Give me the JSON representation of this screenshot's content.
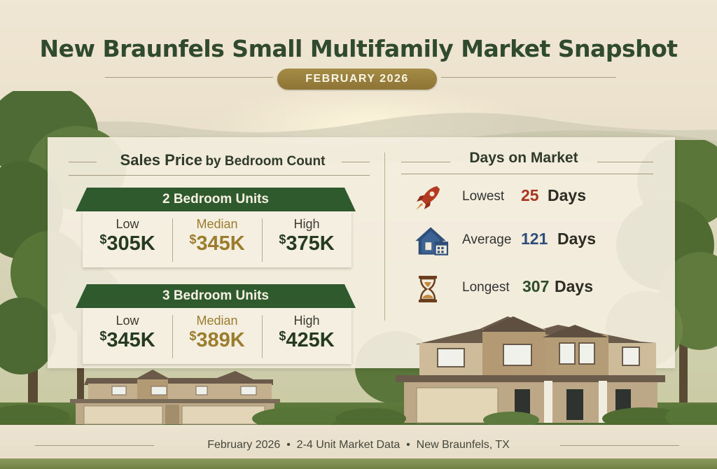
{
  "header": {
    "title": "New Braunfels Small Multifamily Market Snapshot",
    "month_badge": "FEBRUARY 2026"
  },
  "sales_price": {
    "heading_main": "Sales Price",
    "heading_suffix": "by Bedroom Count",
    "groups": [
      {
        "title": "2 Bedroom Units",
        "low_label": "Low",
        "low_value": "305K",
        "median_label": "Median",
        "median_value": "345K",
        "high_label": "High",
        "high_value": "375K"
      },
      {
        "title": "3 Bedroom Units",
        "low_label": "Low",
        "low_value": "345K",
        "median_label": "Median",
        "median_value": "389K",
        "high_label": "High",
        "high_value": "425K"
      }
    ],
    "currency_symbol": "$"
  },
  "days_on_market": {
    "heading": "Days on Market",
    "rows": [
      {
        "label": "Lowest",
        "number": "25",
        "unit": "Days",
        "icon": "rocket-icon",
        "color": "#a7351f"
      },
      {
        "label": "Average",
        "number": "121",
        "unit": "Days",
        "icon": "house-calendar-icon",
        "color": "#2f4f7a"
      },
      {
        "label": "Longest",
        "number": "307",
        "unit": "Days",
        "icon": "hourglass-icon",
        "color": "#2f4a2c"
      }
    ]
  },
  "footer": {
    "text": "February 2026  •  2-4 Unit Market Data  •  New Braunfels, TX"
  },
  "colors": {
    "title_green": "#2f4a2c",
    "banner_green": "#2f5a2e",
    "gold": "#9b7d2e"
  }
}
